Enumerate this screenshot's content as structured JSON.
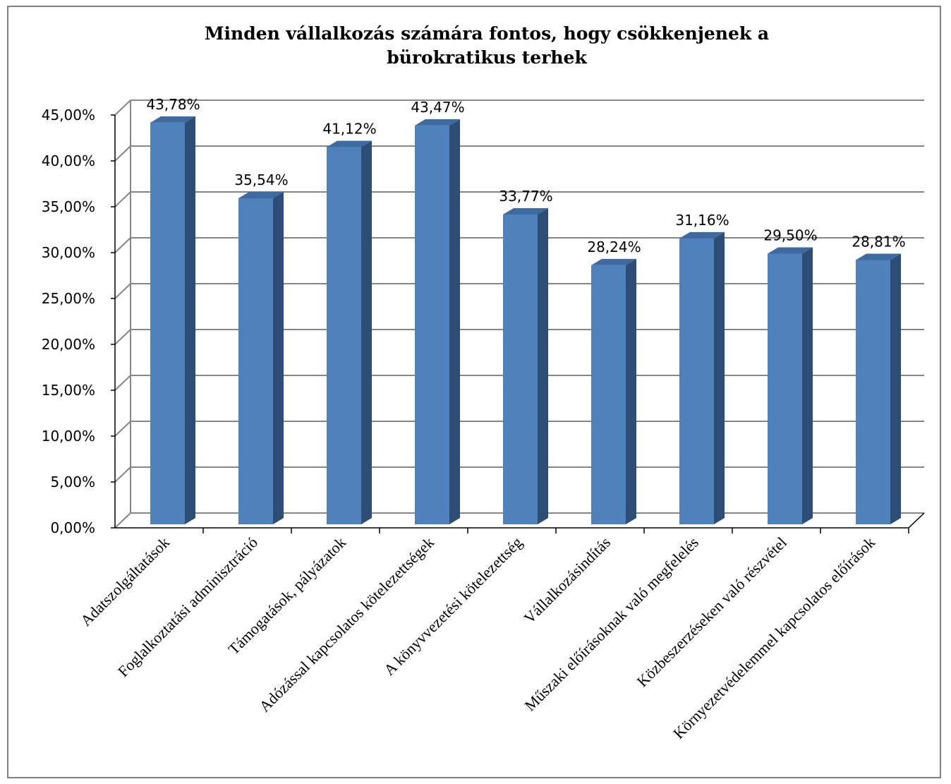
{
  "chart_data": {
    "type": "bar",
    "title_lines": [
      "Minden vállalkozás számára fontos, hogy csökkenjenek a",
      "bürokratikus terhek"
    ],
    "categories": [
      "Adatszolgáltatások",
      "Foglalkoztatási adminisztráció",
      "Támogatások, pályázatok",
      "Adózással kapcsolatos kötelezettségek",
      "A könyvvezetési kötelezettség",
      "Vállalkozásindítás",
      "Műszaki előírásoknak való megfelelés",
      "Közbeszerzéseken való részvétel",
      "Környezetvédelemmel kapcsolatos előírások"
    ],
    "values": [
      43.78,
      35.54,
      41.12,
      43.47,
      33.77,
      28.24,
      31.16,
      29.5,
      28.81
    ],
    "value_labels": [
      "43,78%",
      "35,54%",
      "41,12%",
      "43,47%",
      "33,77%",
      "28,24%",
      "31,16%",
      "29,50%",
      "28,81%"
    ],
    "ylim": [
      0,
      45
    ],
    "y_ticks": [
      0,
      5,
      10,
      15,
      20,
      25,
      30,
      35,
      40,
      45
    ],
    "y_tick_labels": [
      "0,00%",
      "5,00%",
      "10,00%",
      "15,00%",
      "20,00%",
      "25,00%",
      "30,00%",
      "35,00%",
      "40,00%",
      "45,00%"
    ],
    "grid": true,
    "style": "3d-column",
    "colors": {
      "bar_front": "#4f81bd",
      "bar_side": "#2c4d75",
      "bar_top": "#3f6aa0",
      "grid": "#868686"
    }
  }
}
